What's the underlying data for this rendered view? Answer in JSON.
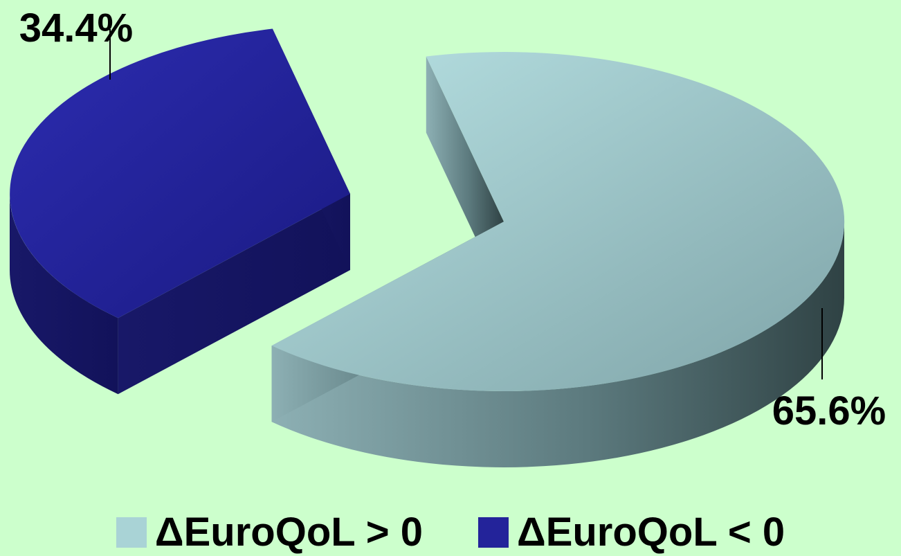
{
  "chart_data": {
    "type": "pie",
    "categories": [
      "ΔEuroQoL > 0",
      "ΔEuroQoL < 0"
    ],
    "values": [
      65.6,
      34.4
    ],
    "data_labels": [
      "65.6%",
      "34.4%"
    ],
    "colors": [
      "#a9d3d6",
      "#23239a"
    ],
    "exploded": [
      false,
      true
    ],
    "three_d": true,
    "legend": "bottom",
    "title": ""
  }
}
